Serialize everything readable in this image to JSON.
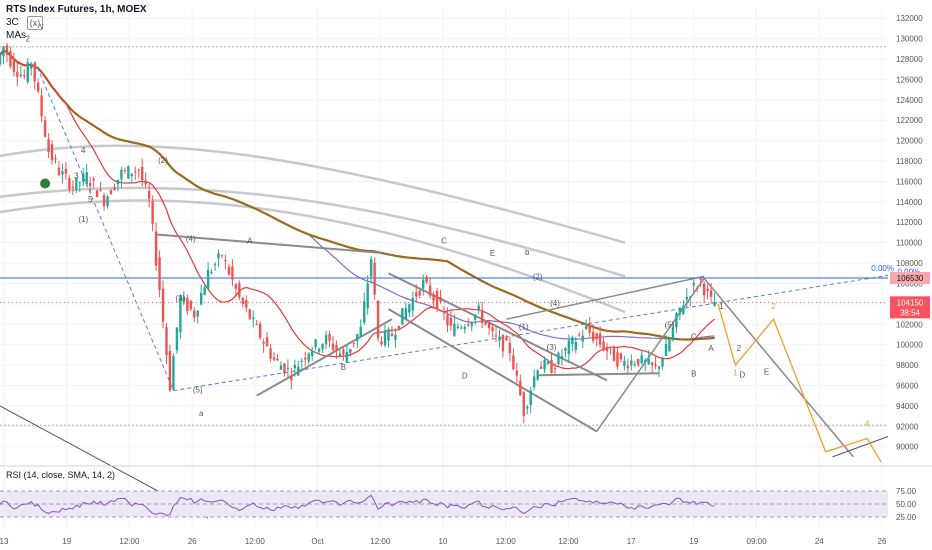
{
  "header": {
    "title": "RTS Index Futures, 1h, MOEX",
    "tool_short": "3C",
    "tool_box": "(x)",
    "mas_label": "MAs"
  },
  "rsi_label": "RSI (14, close, SMA, 14, 2)",
  "price_badges": {
    "level_label": "106530",
    "last_price": "104150",
    "countdown": "38:54",
    "fib_label": "0.00%"
  },
  "colors": {
    "up_candle": "#26a69a",
    "down_candle": "#ef5350",
    "ma_red": "#e53935",
    "ma_brown": "#9c6a1e",
    "ma_purple": "#7e6fc9",
    "ma_grey": "#c8c8c8",
    "projection": "#f59d2b",
    "level_blue": "#2962ff",
    "badge_grey": "#f7525f",
    "rsi_line": "#7e57c2",
    "rsi_band": "#ede7f6"
  },
  "chart_data": {
    "type": "candlestick",
    "title": "RTS Index Futures, 1h, MOEX",
    "y_axis_ticks": [
      132000,
      130000,
      128000,
      126000,
      124000,
      122000,
      120000,
      118000,
      116000,
      114000,
      112000,
      110000,
      108000,
      106000,
      104000,
      102000,
      100000,
      98000,
      96000,
      94000,
      92000,
      90000
    ],
    "ylim": [
      88500,
      133000
    ],
    "x_axis_ticks": [
      "13",
      "19",
      "12:00",
      "26",
      "12:00",
      "Oct",
      "12:00",
      "10",
      "12:00",
      "12:00",
      "17",
      "19",
      "09:00",
      "24",
      "26"
    ],
    "horizontal_levels": [
      {
        "value": 106530,
        "label": "106530",
        "color": "#2962ff"
      },
      {
        "value": 104150,
        "label": "104150",
        "color": "#f7525f"
      }
    ],
    "price_path": [
      {
        "t": 0,
        "p": 127500
      },
      {
        "t": 2,
        "p": 129200
      },
      {
        "t": 5,
        "p": 127200
      },
      {
        "t": 8,
        "p": 126200
      },
      {
        "t": 10,
        "p": 127800
      },
      {
        "t": 15,
        "p": 119000
      },
      {
        "t": 18,
        "p": 117000
      },
      {
        "t": 22,
        "p": 115500
      },
      {
        "t": 26,
        "p": 116500
      },
      {
        "t": 31,
        "p": 114200
      },
      {
        "t": 36,
        "p": 116800
      },
      {
        "t": 41,
        "p": 117200
      },
      {
        "t": 44,
        "p": 114000
      },
      {
        "t": 47,
        "p": 105500
      },
      {
        "t": 50,
        "p": 96000
      },
      {
        "t": 53,
        "p": 104500
      },
      {
        "t": 57,
        "p": 103000
      },
      {
        "t": 61,
        "p": 107000
      },
      {
        "t": 65,
        "p": 108800
      },
      {
        "t": 70,
        "p": 104500
      },
      {
        "t": 75,
        "p": 101500
      },
      {
        "t": 80,
        "p": 98500
      },
      {
        "t": 85,
        "p": 97200
      },
      {
        "t": 90,
        "p": 99500
      },
      {
        "t": 95,
        "p": 100500
      },
      {
        "t": 100,
        "p": 98800
      },
      {
        "t": 105,
        "p": 101500
      },
      {
        "t": 108,
        "p": 108500
      },
      {
        "t": 110,
        "p": 100500
      },
      {
        "t": 114,
        "p": 101000
      },
      {
        "t": 118,
        "p": 103500
      },
      {
        "t": 123,
        "p": 106000
      },
      {
        "t": 127,
        "p": 104200
      },
      {
        "t": 131,
        "p": 101500
      },
      {
        "t": 135,
        "p": 102200
      },
      {
        "t": 139,
        "p": 103200
      },
      {
        "t": 143,
        "p": 100800
      },
      {
        "t": 148,
        "p": 99500
      },
      {
        "t": 152,
        "p": 93500
      },
      {
        "t": 156,
        "p": 98000
      },
      {
        "t": 160,
        "p": 97800
      },
      {
        "t": 165,
        "p": 99800
      },
      {
        "t": 170,
        "p": 101500
      },
      {
        "t": 175,
        "p": 99800
      },
      {
        "t": 180,
        "p": 98200
      },
      {
        "t": 185,
        "p": 98500
      },
      {
        "t": 190,
        "p": 97600
      },
      {
        "t": 193,
        "p": 99500
      },
      {
        "t": 197,
        "p": 103500
      },
      {
        "t": 200,
        "p": 105300
      },
      {
        "t": 203,
        "p": 106200
      },
      {
        "t": 206,
        "p": 104150
      }
    ],
    "projection_orange": [
      {
        "t": 207,
        "p": 104000
      },
      {
        "t": 212,
        "p": 98000
      },
      {
        "t": 223,
        "p": 102500
      },
      {
        "t": 238,
        "p": 89500
      },
      {
        "t": 250,
        "p": 90800
      },
      {
        "t": 254,
        "p": 88500
      }
    ],
    "projection_labels": [
      "1",
      "2",
      "4"
    ],
    "wave_labels": [
      "y",
      "2",
      "4",
      "3",
      "5",
      "(1)",
      "(2)",
      "(4)",
      "(3)",
      "(5)",
      "a",
      "A",
      "B",
      "C",
      "D",
      "E",
      "b",
      "(2)",
      "(4)",
      "(1)",
      "(3)",
      "(5)",
      "1",
      "2",
      "A",
      "B",
      "C",
      "D",
      "E",
      "0.00%"
    ],
    "rsi": {
      "period": 14,
      "levels": [
        75.0,
        50.0,
        25.0
      ],
      "level_labels": [
        "75.00",
        "50.00",
        "25.00"
      ]
    }
  }
}
